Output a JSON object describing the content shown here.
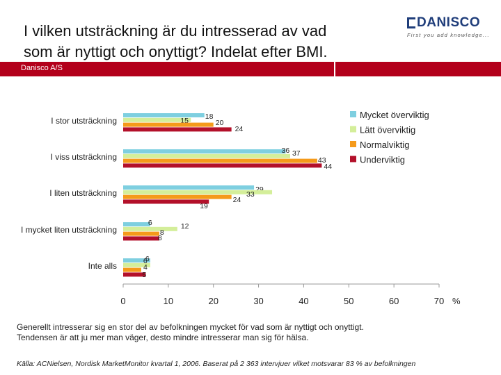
{
  "header": {
    "title_line1": "I vilken utsträckning är du intresserad av vad",
    "title_line2": "som är nyttigt och onyttigt? Indelat efter BMI.",
    "company": "Danisco A/S",
    "logo_text": "DANISCO",
    "logo_tagline": "First you add knowledge..."
  },
  "colors": {
    "series": [
      "#7ecfe0",
      "#d4ee9a",
      "#f59a1a",
      "#b3102a"
    ],
    "brand_red": "#b3001b",
    "axis": "#999999"
  },
  "chart_data": {
    "type": "bar",
    "orientation": "horizontal",
    "title": "I vilken utsträckning är du intresserad av vad som är nyttigt och onyttigt? Indelat efter BMI.",
    "categories": [
      "I stor utsträckning",
      "I viss utsträckning",
      "I liten utsträckning",
      "I mycket liten utsträckning",
      "Inte alls"
    ],
    "series": [
      {
        "name": "Mycket överviktig",
        "values": [
          18,
          36,
          29,
          6,
          6
        ]
      },
      {
        "name": "Lätt överviktig",
        "values": [
          15,
          37,
          33,
          12,
          6
        ]
      },
      {
        "name": "Normalviktig",
        "values": [
          20,
          43,
          24,
          8,
          4
        ]
      },
      {
        "name": "Underviktig",
        "values": [
          24,
          44,
          19,
          8,
          5
        ]
      }
    ],
    "xlim": [
      0,
      70
    ],
    "xticks": [
      "0",
      "10",
      "20",
      "30",
      "40",
      "50",
      "60",
      "70"
    ],
    "xunit": "%",
    "legend_position": "top-right"
  },
  "footer": {
    "note_line1": "Generellt intresserar sig en stor del av befolkningen mycket för vad som är nyttigt och onyttigt.",
    "note_line2": "Tendensen är att ju mer man väger, desto mindre intresserar man sig för hälsa.",
    "source": "Källa: ACNielsen, Nordisk MarketMonitor kvartal 1, 2006. Baserat på 2 363  intervjuer vilket motsvarar 83 % av befolkningen"
  }
}
